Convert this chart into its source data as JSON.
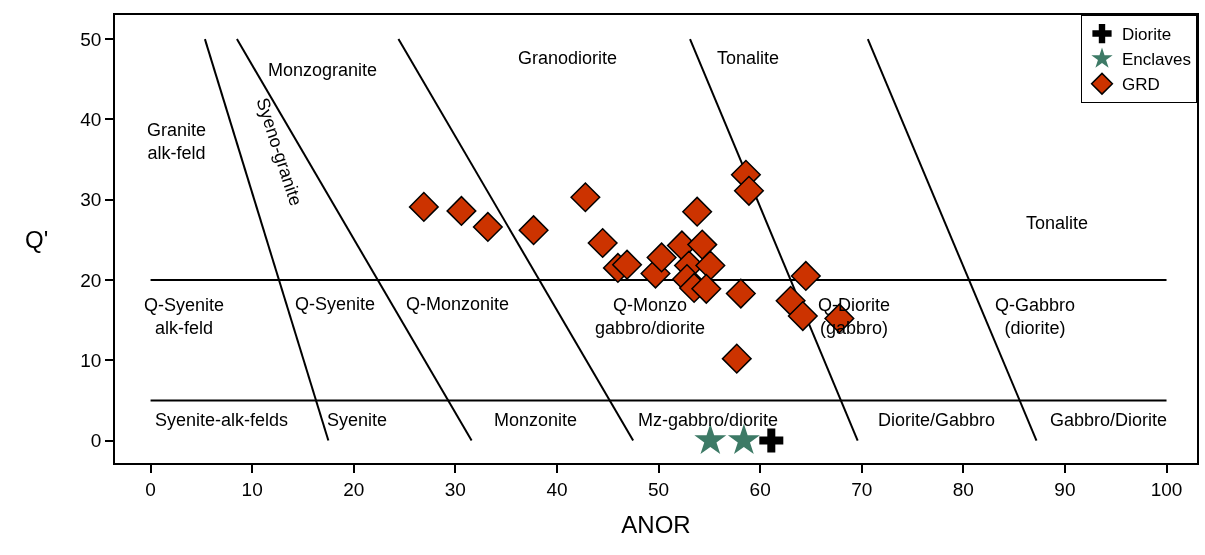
{
  "chart_data": {
    "type": "scatter",
    "xlabel": "ANOR",
    "ylabel": "Q'",
    "xlim": [
      -3.5,
      103
    ],
    "ylim": [
      -2.8,
      53
    ],
    "xticks": [
      0,
      10,
      20,
      30,
      40,
      50,
      60,
      70,
      80,
      90,
      100
    ],
    "yticks": [
      0,
      10,
      20,
      30,
      40,
      50
    ],
    "legend": "top right",
    "series": [
      {
        "type": "line",
        "color": "#000000",
        "marker": "none",
        "x": [
          5.35,
          17.5
        ],
        "values": [
          50,
          0
        ]
      },
      {
        "type": "line",
        "color": "#000000",
        "marker": "none",
        "x": [
          8.5,
          31.6
        ],
        "values": [
          50,
          0
        ]
      },
      {
        "type": "line",
        "color": "#000000",
        "marker": "none",
        "x": [
          24.4,
          47.5
        ],
        "values": [
          50,
          0
        ]
      },
      {
        "type": "line",
        "color": "#000000",
        "marker": "none",
        "x": [
          53.1,
          69.6
        ],
        "values": [
          50,
          0
        ]
      },
      {
        "type": "line",
        "color": "#000000",
        "marker": "none",
        "x": [
          70.6,
          87.2
        ],
        "values": [
          50,
          0
        ]
      },
      {
        "type": "line",
        "color": "#000000",
        "marker": "none",
        "x": [
          0,
          100
        ],
        "values": [
          20,
          20
        ]
      },
      {
        "type": "line",
        "color": "#000000",
        "marker": "none",
        "x": [
          0,
          100
        ],
        "values": [
          5,
          5
        ]
      },
      {
        "name": "Diorite",
        "color": "#000000",
        "marker": "cross",
        "x": [
          61.1
        ],
        "values": [
          0
        ]
      },
      {
        "name": "Enclaves",
        "color": "#3d7a66",
        "marker": "star",
        "x": [
          55.1,
          58.4
        ],
        "values": [
          0,
          0
        ]
      },
      {
        "name": "GRD",
        "color": "#cc3300",
        "marker": "diamond",
        "x": [
          26.9,
          30.6,
          33.2,
          37.7,
          42.8,
          44.5,
          46.0,
          46.9,
          49.7,
          50.3,
          52.3,
          53.8,
          54.3,
          53.0,
          55.1,
          52.8,
          53.5,
          54.7,
          58.6,
          58.9,
          58.1,
          64.5,
          63.0,
          64.2,
          67.8,
          57.7
        ],
        "values": [
          29.1,
          28.6,
          26.6,
          26.2,
          30.3,
          24.6,
          21.5,
          21.9,
          20.8,
          22.8,
          24.3,
          28.5,
          24.4,
          21.8,
          21.8,
          20.1,
          19.0,
          18.9,
          33.1,
          31.1,
          18.3,
          20.5,
          17.4,
          15.5,
          15.2,
          10.2
        ]
      }
    ],
    "annotations": [
      "Monzogranite",
      "Granodiorite",
      "Tonalite",
      "Granite\nalk-feld",
      "Syeno-granite",
      "Tonalite",
      "Q-Syenite\nalk-feld",
      "Q-Syenite",
      "Q-Monzonite",
      "Q-Monzo\ngabbro/diorite",
      "Q-Diorite\n(gabbro)",
      "Q-Gabbro\n(diorite)",
      "Syenite-alk-felds",
      "Syenite",
      "Monzonite",
      "Mz-gabbro/diorite",
      "Diorite/Gabbro",
      "Gabbro/Diorite"
    ]
  }
}
